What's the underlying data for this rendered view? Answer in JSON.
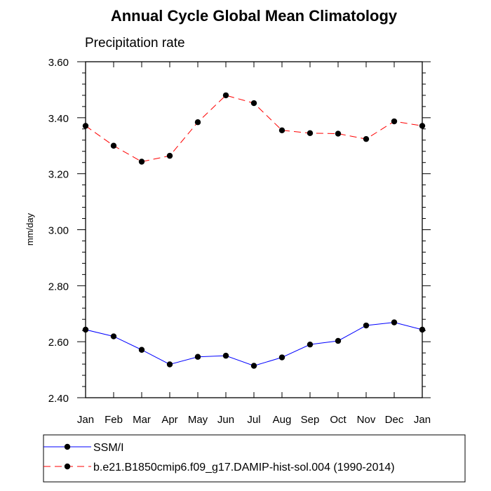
{
  "chart_data": {
    "type": "line",
    "title": "Annual Cycle Global Mean Climatology",
    "subtitle": "Precipitation rate",
    "xlabel": "",
    "ylabel": "mm/day",
    "categories": [
      "Jan",
      "Feb",
      "Mar",
      "Apr",
      "May",
      "Jun",
      "Jul",
      "Aug",
      "Sep",
      "Oct",
      "Nov",
      "Dec",
      "Jan"
    ],
    "ylim": [
      2.4,
      3.6
    ],
    "yticks": [
      "2.40",
      "2.60",
      "2.80",
      "3.00",
      "3.20",
      "3.40",
      "3.60"
    ],
    "grid": false,
    "legend_position": "bottom",
    "series": [
      {
        "name": "SSM/I",
        "color": "#0000ff",
        "line_style": "solid",
        "marker": "filled-circle",
        "values": [
          2.643,
          2.619,
          2.571,
          2.519,
          2.546,
          2.55,
          2.514,
          2.544,
          2.59,
          2.603,
          2.658,
          2.669,
          2.643
        ]
      },
      {
        "name": "b.e21.B1850cmip6.f09_g17.DAMIP-hist-sol.004 (1990-2014)",
        "color": "#ff0000",
        "line_style": "dashed",
        "marker": "filled-circle",
        "values": [
          3.371,
          3.3,
          3.243,
          3.264,
          3.384,
          3.48,
          3.452,
          3.355,
          3.345,
          3.343,
          3.324,
          3.387,
          3.371
        ]
      }
    ]
  }
}
